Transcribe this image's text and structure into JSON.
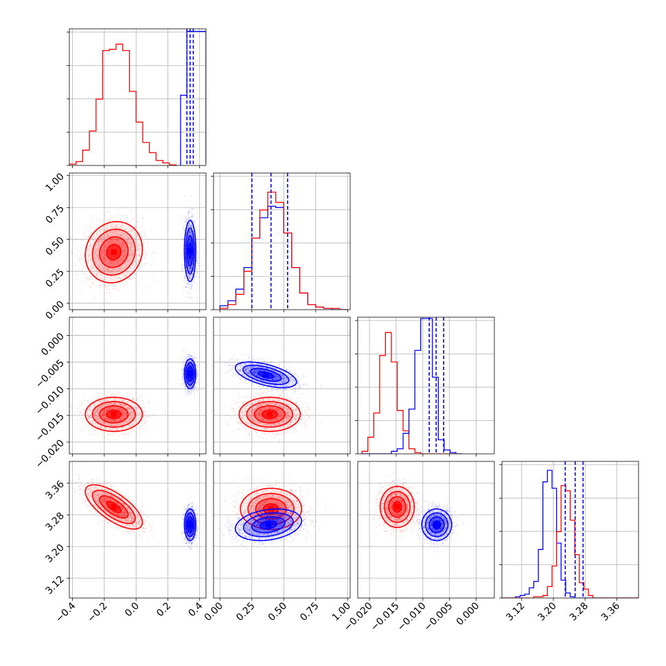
{
  "chart_data": {
    "type": "corner",
    "series": [
      {
        "name": "",
        "color": "#ff0000"
      },
      {
        "name": "",
        "color": "#0000ff"
      }
    ],
    "grid": true,
    "parameters": [
      {
        "index": 0,
        "range": [
          -0.42,
          0.44
        ],
        "ticks": [
          -0.4,
          -0.2,
          0.0,
          0.2,
          0.4
        ],
        "tick_labels": [
          "−0.4",
          "−0.2",
          "0.0",
          "0.2",
          "0.4"
        ]
      },
      {
        "index": 1,
        "range": [
          -0.05,
          1.02
        ],
        "ticks": [
          0.0,
          0.25,
          0.5,
          0.75,
          1.0
        ],
        "tick_labels": [
          "0.00",
          "0.25",
          "0.50",
          "0.75",
          "1.00"
        ]
      },
      {
        "index": 2,
        "range": [
          -0.0222,
          0.0034
        ],
        "ticks": [
          -0.02,
          -0.015,
          -0.01,
          -0.005,
          0.0
        ],
        "tick_labels": [
          "−0.020",
          "−0.015",
          "−0.010",
          "−0.005",
          "0.000"
        ]
      },
      {
        "index": 3,
        "range": [
          3.07,
          3.415
        ],
        "ticks": [
          3.12,
          3.2,
          3.28,
          3.36
        ],
        "tick_labels": [
          "3.12",
          "3.20",
          "3.28",
          "3.36"
        ]
      }
    ],
    "histograms": [
      {
        "param": 0,
        "series": [
          {
            "color": "#ff0000",
            "edges_start": -0.42,
            "bin_width": 0.042,
            "heights": [
              0.01,
              0.03,
              0.12,
              0.27,
              0.52,
              0.9,
              0.91,
              0.95,
              0.9,
              0.58,
              0.34,
              0.18,
              0.1,
              0.04,
              0.02,
              0.005
            ]
          },
          {
            "color": "#0000ff",
            "edges_start": 0.28,
            "bin_width": 0.04,
            "heights": [
              0.55,
              1.05,
              1.05,
              1.05,
              0.02
            ]
          }
        ],
        "quantiles": [
          0.32,
          0.34,
          0.36
        ],
        "quantile_color": "#0000ff"
      },
      {
        "param": 1,
        "series": [
          {
            "color": "#0000ff",
            "edges_start": 0.0,
            "bin_width": 0.0625,
            "heights": [
              0.03,
              0.07,
              0.16,
              0.33,
              0.56,
              0.72,
              0.81,
              0.8,
              0.6,
              0.33,
              0.13,
              0.04,
              0.02,
              0.01,
              0.0,
              0.0
            ]
          },
          {
            "color": "#ff0000",
            "edges_start": 0.0,
            "bin_width": 0.0625,
            "heights": [
              0.01,
              0.04,
              0.12,
              0.3,
              0.56,
              0.78,
              0.92,
              0.84,
              0.6,
              0.33,
              0.13,
              0.04,
              0.02,
              0.01,
              0.01,
              0.0
            ]
          }
        ],
        "quantiles": [
          0.25,
          0.4,
          0.53
        ],
        "quantile_color": "#0000ff"
      },
      {
        "param": 2,
        "series": [
          {
            "color": "#ff0000",
            "edges_start": -0.0214,
            "bin_width": 0.0011,
            "heights": [
              0.02,
              0.13,
              0.32,
              0.77,
              0.95,
              0.72,
              0.34,
              0.18,
              0.04,
              0.01,
              0.0,
              0.0,
              0.0,
              0.0,
              0.0,
              0.0,
              0.0
            ]
          },
          {
            "color": "#0000ff",
            "edges_start": -0.0214,
            "bin_width": 0.0011,
            "heights": [
              0.0,
              0.0,
              0.0,
              0.0,
              0.0,
              0.02,
              0.04,
              0.16,
              0.35,
              0.81,
              1.06,
              1.06,
              0.6,
              0.11,
              0.03,
              0.01,
              0.0
            ]
          }
        ],
        "quantiles": [
          -0.0088,
          -0.0075,
          -0.0061
        ],
        "quantile_color": "#0000ff"
      },
      {
        "param": 3,
        "series": [
          {
            "color": "#0000ff",
            "edges_start": 3.07,
            "bin_width": 0.0115,
            "heights": [
              0.0,
              0.0,
              0.0,
              0.01,
              0.02,
              0.03,
              0.08,
              0.13,
              0.38,
              0.91,
              1.0,
              0.86,
              0.43,
              0.14,
              0.04,
              0.01,
              0.0,
              0.0,
              0.0,
              0.0,
              0.0,
              0.0,
              0.0,
              0.0,
              0.0,
              0.0,
              0.0,
              0.0,
              0.0,
              0.0
            ]
          },
          {
            "color": "#ff0000",
            "edges_start": 3.07,
            "bin_width": 0.0115,
            "heights": [
              0.0,
              0.0,
              0.0,
              0.0,
              0.0,
              0.0,
              0.0,
              0.01,
              0.01,
              0.02,
              0.09,
              0.25,
              0.52,
              0.88,
              0.84,
              0.61,
              0.34,
              0.12,
              0.07,
              0.02,
              0.0,
              0.0,
              0.0,
              0.0,
              0.0,
              0.0,
              0.0,
              0.0,
              0.0,
              0.0
            ]
          }
        ],
        "quantiles": [
          3.23,
          3.255,
          3.275
        ],
        "quantile_color": "#0000ff"
      }
    ],
    "blobs": [
      {
        "x": 1,
        "y": 0,
        "series": [
          {
            "color": "#ff0000",
            "mean": [
              -0.14,
              0.4
            ],
            "sd": [
              0.09,
              0.12
            ],
            "corr": 0.1
          },
          {
            "color": "#0000ff",
            "mean": [
              0.34,
              0.41
            ],
            "sd": [
              0.018,
              0.12
            ],
            "corr": 0.0
          }
        ]
      },
      {
        "x": 2,
        "y": 0,
        "series": [
          {
            "color": "#ff0000",
            "mean": [
              -0.14,
              -0.0148
            ],
            "sd": [
              0.09,
              0.0016
            ],
            "corr": 0.0
          },
          {
            "color": "#0000ff",
            "mean": [
              0.34,
              -0.0072
            ],
            "sd": [
              0.018,
              0.0014
            ],
            "corr": 0.0
          }
        ]
      },
      {
        "x": 2,
        "y": 1,
        "series": [
          {
            "color": "#ff0000",
            "mean": [
              0.39,
              -0.0148
            ],
            "sd": [
              0.12,
              0.0016
            ],
            "corr": 0.0
          },
          {
            "color": "#0000ff",
            "mean": [
              0.36,
              -0.0074
            ],
            "sd": [
              0.12,
              0.0012
            ],
            "corr": -0.55
          }
        ]
      },
      {
        "x": 3,
        "y": 0,
        "series": [
          {
            "color": "#ff0000",
            "mean": [
              -0.14,
              3.3
            ],
            "sd": [
              0.09,
              0.028
            ],
            "corr": -0.7
          },
          {
            "color": "#0000ff",
            "mean": [
              0.34,
              3.255
            ],
            "sd": [
              0.018,
              0.02
            ],
            "corr": 0.0
          }
        ]
      },
      {
        "x": 3,
        "y": 1,
        "series": [
          {
            "color": "#ff0000",
            "mean": [
              0.4,
              3.295
            ],
            "sd": [
              0.12,
              0.026
            ],
            "corr": 0.0
          },
          {
            "color": "#0000ff",
            "mean": [
              0.38,
              3.255
            ],
            "sd": [
              0.13,
              0.02
            ],
            "corr": 0.25
          }
        ]
      },
      {
        "x": 3,
        "y": 2,
        "series": [
          {
            "color": "#ff0000",
            "mean": [
              -0.0148,
              3.3
            ],
            "sd": [
              0.0016,
              0.026
            ],
            "corr": 0.0
          },
          {
            "color": "#0000ff",
            "mean": [
              -0.0074,
              3.255
            ],
            "sd": [
              0.0014,
              0.02
            ],
            "corr": 0.0
          }
        ]
      }
    ]
  }
}
